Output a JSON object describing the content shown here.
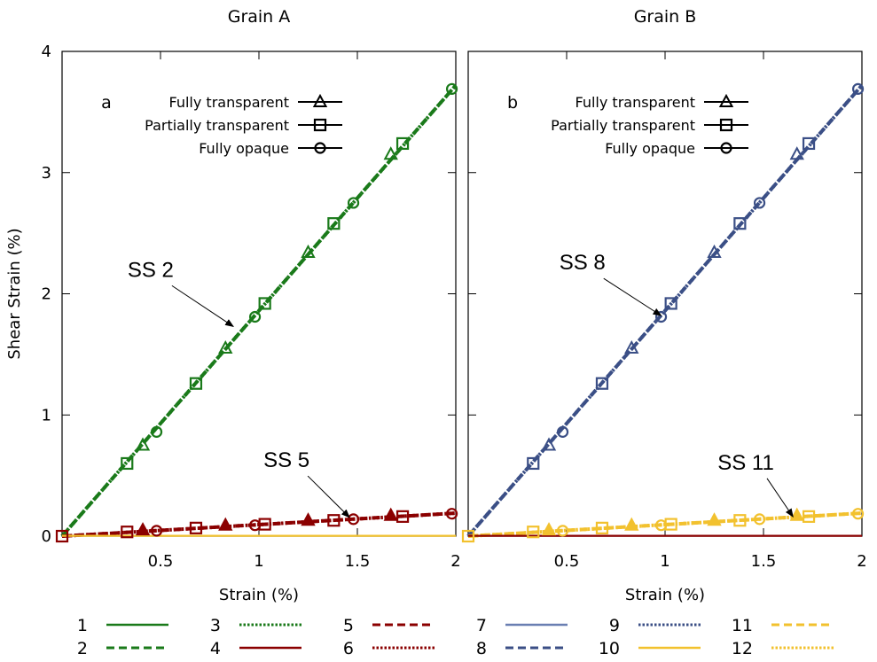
{
  "chart_data": [
    {
      "type": "line",
      "title": "Grain A",
      "panel_label": "a",
      "xlabel": "Strain (%)",
      "ylabel": "Shear Strain (%)",
      "xlim": [
        0,
        2
      ],
      "ylim": [
        0,
        4
      ],
      "xticks": [
        "0.5",
        "1",
        "1.5",
        "2"
      ],
      "yticks": [
        "0",
        "1",
        "2",
        "3",
        "4"
      ],
      "series": [
        {
          "name": "2",
          "color": "#1a7a1a",
          "style": "dashed",
          "x": [
            0,
            2
          ],
          "y": [
            0,
            3.72
          ]
        },
        {
          "name": "3",
          "color": "#1a7a1a",
          "style": "dotted",
          "x": [
            0,
            2
          ],
          "y": [
            0,
            3.72
          ]
        },
        {
          "name": "5",
          "color": "#8b0000",
          "style": "dashed",
          "x": [
            0,
            2
          ],
          "y": [
            0,
            0.19
          ]
        },
        {
          "name": "6",
          "color": "#8b0000",
          "style": "dotted",
          "x": [
            0,
            2
          ],
          "y": [
            0,
            0.19
          ]
        },
        {
          "name": "10",
          "color": "#f2c12e",
          "style": "solid",
          "x": [
            0,
            2
          ],
          "y": [
            0.003,
            0.003
          ]
        }
      ],
      "markers": [
        {
          "shape": "square",
          "color": "#1a7a1a",
          "points": [
            [
              0.33,
              0.6
            ],
            [
              0.68,
              1.26
            ],
            [
              1.03,
              1.92
            ],
            [
              1.38,
              2.58
            ],
            [
              1.73,
              3.24
            ]
          ]
        },
        {
          "shape": "triangle",
          "color": "#1a7a1a",
          "points": [
            [
              0.41,
              0.75
            ],
            [
              0.83,
              1.55
            ],
            [
              1.25,
              2.34
            ],
            [
              1.67,
              3.15
            ]
          ]
        },
        {
          "shape": "circle",
          "color": "#1a7a1a",
          "points": [
            [
              0.48,
              0.86
            ],
            [
              0.98,
              1.81
            ],
            [
              1.48,
              2.75
            ],
            [
              1.98,
              3.69
            ]
          ]
        },
        {
          "shape": "square",
          "color": "#8b0000",
          "points": [
            [
              0,
              0
            ],
            [
              0.33,
              0.035
            ],
            [
              0.68,
              0.067
            ],
            [
              1.03,
              0.098
            ],
            [
              1.38,
              0.13
            ],
            [
              1.73,
              0.162
            ]
          ]
        },
        {
          "shape": "triangle-filled",
          "color": "#8b0000",
          "points": [
            [
              0.41,
              0.05
            ],
            [
              0.83,
              0.09
            ],
            [
              1.25,
              0.13
            ],
            [
              1.67,
              0.17
            ]
          ]
        },
        {
          "shape": "circle",
          "color": "#8b0000",
          "points": [
            [
              0.48,
              0.045
            ],
            [
              0.98,
              0.09
            ],
            [
              1.48,
              0.14
            ],
            [
              1.98,
              0.185
            ]
          ]
        }
      ],
      "annotations": [
        {
          "text": "SS 2",
          "at": [
            0.45,
            2.14
          ],
          "arrow_to": [
            0.87,
            1.73
          ]
        },
        {
          "text": "SS 5",
          "at": [
            1.14,
            0.57
          ],
          "arrow_to": [
            1.46,
            0.155
          ]
        }
      ]
    },
    {
      "type": "line",
      "title": "Grain B",
      "panel_label": "b",
      "xlabel": "Strain (%)",
      "ylabel": "",
      "xlim": [
        0,
        2
      ],
      "ylim": [
        0,
        4
      ],
      "xticks": [
        "0.5",
        "1",
        "1.5",
        "2"
      ],
      "yticks": [],
      "series": [
        {
          "name": "8",
          "color": "#3b4f86",
          "style": "dashed",
          "x": [
            0,
            2
          ],
          "y": [
            0,
            3.72
          ]
        },
        {
          "name": "9",
          "color": "#3b4f86",
          "style": "dotted",
          "x": [
            0,
            2
          ],
          "y": [
            0,
            3.72
          ]
        },
        {
          "name": "11",
          "color": "#f2c12e",
          "style": "dashed",
          "x": [
            0,
            2
          ],
          "y": [
            0,
            0.19
          ]
        },
        {
          "name": "12",
          "color": "#f2c12e",
          "style": "dotted",
          "x": [
            0,
            2
          ],
          "y": [
            0,
            0.19
          ]
        },
        {
          "name": "4",
          "color": "#8b0000",
          "style": "solid",
          "x": [
            0,
            2
          ],
          "y": [
            0.003,
            0.003
          ]
        }
      ],
      "markers": [
        {
          "shape": "square",
          "color": "#3b4f86",
          "points": [
            [
              0.33,
              0.6
            ],
            [
              0.68,
              1.26
            ],
            [
              1.03,
              1.92
            ],
            [
              1.38,
              2.58
            ],
            [
              1.73,
              3.24
            ]
          ]
        },
        {
          "shape": "triangle",
          "color": "#3b4f86",
          "points": [
            [
              0.41,
              0.75
            ],
            [
              0.83,
              1.55
            ],
            [
              1.25,
              2.34
            ],
            [
              1.67,
              3.15
            ]
          ]
        },
        {
          "shape": "circle",
          "color": "#3b4f86",
          "points": [
            [
              0.48,
              0.86
            ],
            [
              0.98,
              1.81
            ],
            [
              1.48,
              2.75
            ],
            [
              1.98,
              3.69
            ]
          ]
        },
        {
          "shape": "square",
          "color": "#f2c12e",
          "points": [
            [
              0,
              0
            ],
            [
              0.33,
              0.035
            ],
            [
              0.68,
              0.067
            ],
            [
              1.03,
              0.098
            ],
            [
              1.38,
              0.13
            ],
            [
              1.73,
              0.162
            ]
          ]
        },
        {
          "shape": "triangle-filled",
          "color": "#f2c12e",
          "points": [
            [
              0.41,
              0.05
            ],
            [
              0.83,
              0.09
            ],
            [
              1.25,
              0.13
            ],
            [
              1.67,
              0.17
            ]
          ]
        },
        {
          "shape": "circle",
          "color": "#f2c12e",
          "points": [
            [
              0.48,
              0.045
            ],
            [
              0.98,
              0.09
            ],
            [
              1.48,
              0.14
            ],
            [
              1.98,
              0.185
            ]
          ]
        }
      ],
      "annotations": [
        {
          "text": "SS 8",
          "at": [
            0.58,
            2.2
          ],
          "arrow_to": [
            0.98,
            1.82
          ]
        },
        {
          "text": "SS 11",
          "at": [
            1.41,
            0.55
          ],
          "arrow_to": [
            1.65,
            0.16
          ]
        }
      ]
    }
  ],
  "inset_legend": [
    {
      "label": "Fully transparent",
      "marker": "triangle"
    },
    {
      "label": "Partially transparent",
      "marker": "square"
    },
    {
      "label": "Fully opaque",
      "marker": "circle"
    }
  ],
  "bottom_legend": [
    {
      "label": "1",
      "color": "#1a7a1a",
      "style": "solid"
    },
    {
      "label": "2",
      "color": "#1a7a1a",
      "style": "dashed"
    },
    {
      "label": "3",
      "color": "#1a7a1a",
      "style": "dotted"
    },
    {
      "label": "4",
      "color": "#8b0000",
      "style": "solid"
    },
    {
      "label": "5",
      "color": "#8b0000",
      "style": "dashed"
    },
    {
      "label": "6",
      "color": "#8b0000",
      "style": "dotted"
    },
    {
      "label": "7",
      "color": "#6a7fb2",
      "style": "solid"
    },
    {
      "label": "8",
      "color": "#3b4f86",
      "style": "dashed"
    },
    {
      "label": "9",
      "color": "#3b4f86",
      "style": "dotted"
    },
    {
      "label": "10",
      "color": "#f2c12e",
      "style": "solid"
    },
    {
      "label": "11",
      "color": "#f2c12e",
      "style": "dashed"
    },
    {
      "label": "12",
      "color": "#f2c12e",
      "style": "dotted"
    }
  ],
  "y_zero_label": "0"
}
